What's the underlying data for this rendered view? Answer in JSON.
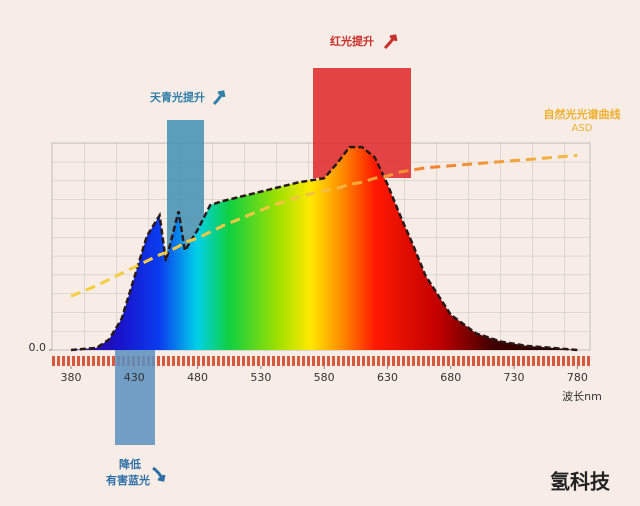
{
  "chart_data": {
    "type": "area",
    "x": [
      380,
      400,
      410,
      420,
      430,
      440,
      450,
      455,
      465,
      470,
      480,
      490,
      500,
      520,
      540,
      560,
      580,
      590,
      600,
      610,
      620,
      630,
      640,
      650,
      660,
      680,
      700,
      720,
      740,
      760,
      780
    ],
    "series": [
      {
        "color": "#2a1818",
        "values": [
          0,
          0.01,
          0.05,
          0.15,
          0.35,
          0.55,
          0.65,
          0.43,
          0.67,
          0.48,
          0.58,
          0.7,
          0.72,
          0.75,
          0.78,
          0.81,
          0.83,
          0.9,
          0.98,
          0.98,
          0.93,
          0.8,
          0.65,
          0.51,
          0.36,
          0.17,
          0.08,
          0.04,
          0.02,
          0.01,
          0
        ]
      },
      {
        "name": "自然光光谱曲线",
        "name_sub": "ASD",
        "color": "#f5c242",
        "values": [
          0.26,
          0.31,
          0.34,
          0.37,
          0.4,
          0.43,
          0.46,
          0.47,
          0.5,
          0.52,
          0.54,
          0.57,
          0.6,
          0.65,
          0.7,
          0.74,
          0.77,
          0.78,
          0.8,
          0.81,
          0.83,
          0.84,
          0.86,
          0.87,
          0.88,
          0.89,
          0.9,
          0.91,
          0.92,
          0.93,
          0.94
        ]
      }
    ],
    "xlim": [
      365,
      790
    ],
    "xticks": [
      380,
      430,
      480,
      530,
      580,
      630,
      680,
      730,
      780
    ],
    "ylim": [
      0,
      1
    ],
    "yticks": [
      {
        "value": 0,
        "label": "0.0"
      }
    ],
    "xlabel": "波长nm",
    "annotations": [
      "红光提升",
      "天青光提升",
      "降低",
      "有害蓝光"
    ],
    "watermark": "氢科技"
  }
}
